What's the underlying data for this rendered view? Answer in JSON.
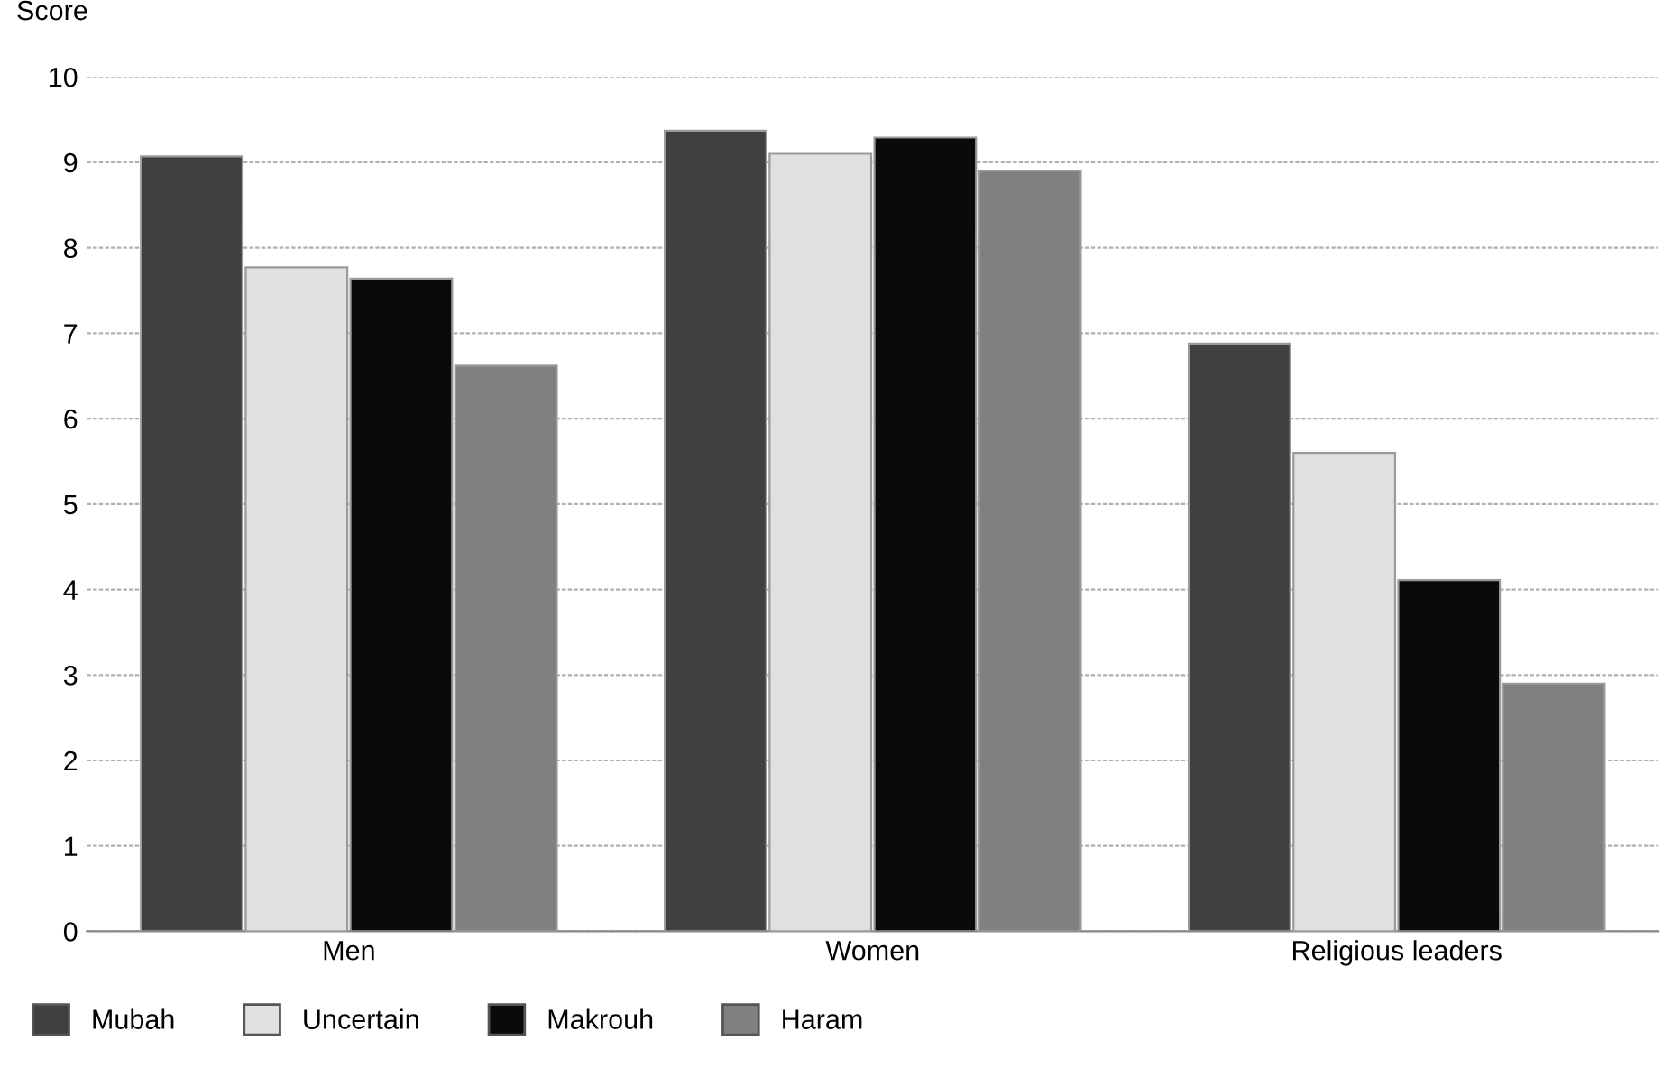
{
  "chart_data": {
    "type": "bar",
    "ylabel": "Score",
    "categories": [
      "Men",
      "Women",
      "Religious leaders"
    ],
    "series": [
      {
        "name": "Mubah",
        "color": "#404040",
        "values": [
          9.07,
          9.37,
          6.88
        ]
      },
      {
        "name": "Uncertain",
        "color": "#e0e0e0",
        "values": [
          7.77,
          9.1,
          5.6
        ]
      },
      {
        "name": "Makrouh",
        "color": "#0a0a0a",
        "values": [
          7.64,
          9.29,
          4.11
        ]
      },
      {
        "name": "Haram",
        "color": "#808080",
        "values": [
          6.62,
          8.9,
          2.9
        ]
      }
    ],
    "ylim": [
      0,
      10
    ],
    "yticks": [
      0,
      1,
      2,
      3,
      4,
      5,
      6,
      7,
      8,
      9,
      10
    ],
    "grid": "y",
    "legend": "bottom left"
  }
}
